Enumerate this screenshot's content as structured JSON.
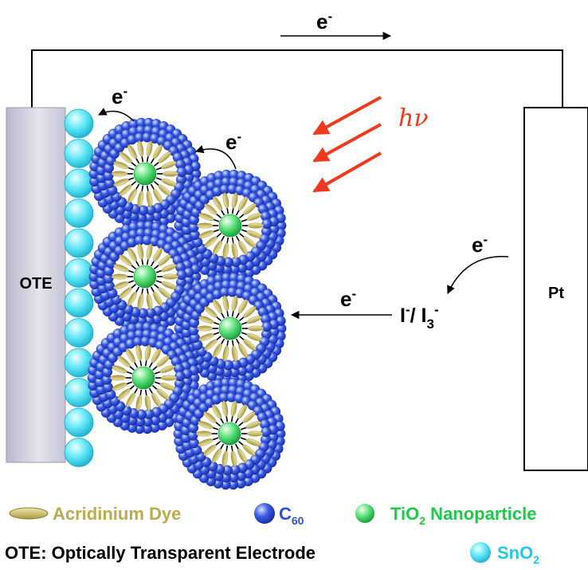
{
  "diagram": {
    "electron_symbol": "e",
    "electron_charge": "-",
    "light_label": "hν",
    "electrode_left_label": "OTE",
    "electrode_right_label": "Pt",
    "redox": {
      "i_minus": "I",
      "sup1": "-",
      "slash": "/ I",
      "sub3": "3",
      "sup2": "-"
    }
  },
  "legend": {
    "dye_label": "Acridinium Dye",
    "c60_main": "C",
    "c60_sub": "60",
    "tio2_main": "TiO",
    "tio2_sub": "2",
    "tio2_rest": " Nanoparticle",
    "ote_definition": "OTE: Optically Transparent Electrode",
    "sno2_main": "SnO",
    "sno2_sub": "2"
  },
  "colors": {
    "c60": "#2f4fd6",
    "tio2": "#2fcf5a",
    "dye": "#b9ab4e",
    "sno2": "#38d8f0",
    "light": "#ee3a1e",
    "text_legend": "#b9ab4e",
    "tio2_text": "#1fc84a",
    "sno2_text": "#22c8e8"
  }
}
